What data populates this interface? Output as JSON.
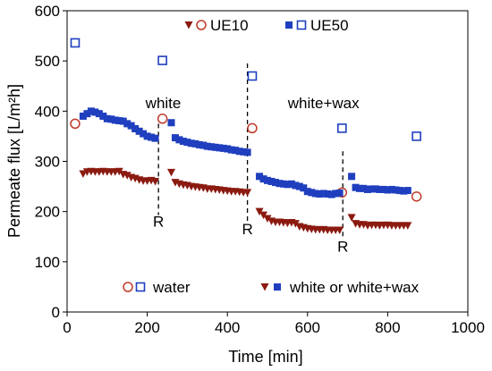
{
  "chart_data": {
    "type": "scatter",
    "xlabel": "Time [min]",
    "ylabel": "Permeate flux [L/m²h]",
    "xlim": [
      0,
      1000
    ],
    "ylim": [
      0,
      600
    ],
    "xticks": [
      "0",
      "200",
      "400",
      "600",
      "800",
      "1000"
    ],
    "yticks": [
      "0",
      "100",
      "200",
      "300",
      "400",
      "500",
      "600"
    ],
    "grid": false,
    "legend_top": {
      "placement": "top",
      "items": [
        {
          "label": "UE10",
          "series": "UE10"
        },
        {
          "label": "UE50",
          "series": "UE50"
        }
      ]
    },
    "legend_bottom": {
      "placement": "bottom",
      "items": [
        {
          "label": "water",
          "marker": "open"
        },
        {
          "label": "white or white+wax",
          "marker": "filled"
        }
      ]
    },
    "annotations": [
      {
        "text": "white",
        "x": 240,
        "y": 406
      },
      {
        "text": "white+wax",
        "x": 640,
        "y": 406
      },
      {
        "text": "R",
        "x": 228,
        "y": 170
      },
      {
        "text": "R",
        "x": 450,
        "y": 155
      },
      {
        "text": "R",
        "x": 688,
        "y": 120
      }
    ],
    "dividers": [
      {
        "x": 228,
        "y1": 193,
        "y2": 375
      },
      {
        "x": 450,
        "y1": 180,
        "y2": 495
      },
      {
        "x": 688,
        "y1": 145,
        "y2": 320
      }
    ],
    "colors": {
      "UE10": "#c0392b",
      "UE10_filled": "#8b1a10",
      "UE50": "#1f3fbf"
    },
    "series": [
      {
        "name": "UE10",
        "kind": "water",
        "marker": "open-circle",
        "x": [
          20,
          238,
          462,
          686,
          872
        ],
        "y": [
          375,
          385,
          366,
          238,
          230
        ]
      },
      {
        "name": "UE50",
        "kind": "water",
        "marker": "open-square",
        "x": [
          20,
          238,
          462,
          686,
          872
        ],
        "y": [
          536,
          501,
          470,
          366,
          350
        ]
      },
      {
        "name": "UE10",
        "kind": "white",
        "marker": "filled-triangle",
        "x": [
          40,
          50,
          60,
          70,
          80,
          90,
          100,
          110,
          120,
          130,
          140,
          150,
          160,
          170,
          180,
          190,
          200,
          210,
          220,
          260,
          270,
          280,
          290,
          300,
          310,
          320,
          330,
          340,
          350,
          360,
          370,
          380,
          390,
          400,
          410,
          420,
          430,
          440,
          450,
          480,
          490,
          500,
          510,
          520,
          530,
          540,
          550,
          560,
          570,
          580,
          590,
          600,
          610,
          620,
          630,
          640,
          650,
          660,
          670,
          680,
          710,
          720,
          730,
          740,
          750,
          760,
          770,
          780,
          790,
          800,
          810,
          820,
          830,
          840,
          850
        ],
        "y": [
          275,
          279,
          280,
          279,
          279,
          280,
          279,
          279,
          279,
          280,
          274,
          272,
          268,
          266,
          263,
          261,
          261,
          262,
          260,
          278,
          258,
          255,
          253,
          252,
          250,
          249,
          248,
          247,
          245,
          245,
          244,
          243,
          242,
          241,
          240,
          240,
          239,
          238,
          238,
          200,
          193,
          186,
          181,
          179,
          179,
          178,
          177,
          178,
          176,
          170,
          168,
          166,
          165,
          164,
          164,
          164,
          163,
          163,
          163,
          163,
          188,
          176,
          174,
          174,
          172,
          173,
          173,
          172,
          173,
          173,
          172,
          172,
          172,
          172,
          172
        ]
      },
      {
        "name": "UE50",
        "kind": "white",
        "marker": "filled-square",
        "x": [
          40,
          50,
          60,
          70,
          80,
          90,
          100,
          110,
          120,
          130,
          140,
          150,
          160,
          170,
          180,
          190,
          200,
          210,
          220,
          260,
          270,
          280,
          290,
          300,
          310,
          320,
          330,
          340,
          350,
          360,
          370,
          380,
          390,
          400,
          410,
          420,
          430,
          440,
          450,
          480,
          490,
          500,
          510,
          520,
          530,
          540,
          550,
          560,
          570,
          580,
          590,
          600,
          610,
          620,
          630,
          640,
          650,
          660,
          670,
          680,
          710,
          720,
          730,
          740,
          750,
          760,
          770,
          780,
          790,
          800,
          810,
          820,
          830,
          840,
          850
        ],
        "y": [
          390,
          395,
          400,
          398,
          395,
          390,
          385,
          384,
          382,
          381,
          380,
          375,
          371,
          365,
          360,
          355,
          350,
          348,
          346,
          377,
          347,
          343,
          340,
          338,
          336,
          335,
          333,
          332,
          330,
          329,
          328,
          327,
          326,
          325,
          323,
          322,
          320,
          319,
          318,
          270,
          265,
          262,
          260,
          258,
          256,
          255,
          254,
          255,
          252,
          250,
          247,
          240,
          238,
          236,
          235,
          236,
          235,
          234,
          236,
          237,
          270,
          248,
          246,
          246,
          244,
          245,
          245,
          244,
          244,
          243,
          244,
          243,
          242,
          241,
          242
        ]
      }
    ]
  }
}
